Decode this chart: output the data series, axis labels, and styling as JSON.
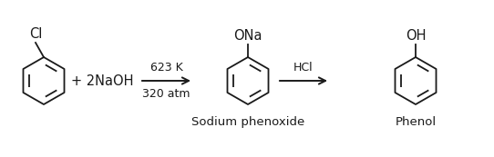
{
  "bg_color": "#ffffff",
  "text_color": "#1a1a1a",
  "arrow_color": "#1a1a1a",
  "font_size_label": 10.5,
  "font_size_condition": 9.0,
  "font_size_name": 9.5,
  "font_size_substituent": 10.5,
  "condition_line1": "623 K",
  "condition_line2": "320 atm",
  "reagent2": "HCl",
  "reactant_label": "+ 2NaOH",
  "product1_name": "Sodium phenoxide",
  "product2_name": "Phenol",
  "substituent1": "Cl",
  "substituent2": "ONa",
  "substituent3": "OH",
  "figsize": [
    5.42,
    1.73
  ],
  "dpi": 100
}
